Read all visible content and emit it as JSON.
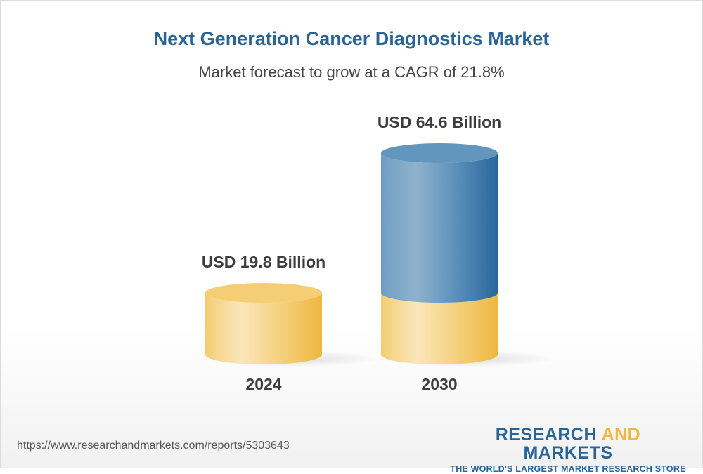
{
  "title": "Next Generation Cancer Diagnostics Market",
  "subtitle": "Market forecast to grow at a CAGR of 21.8%",
  "chart_data": {
    "type": "bar",
    "style": "3d-cylinder",
    "categories": [
      "2024",
      "2030"
    ],
    "values": [
      19.8,
      64.6
    ],
    "value_labels": [
      "USD 19.8 Billion",
      "USD 64.6 Billion"
    ],
    "unit": "USD Billion",
    "cagr": "21.8%",
    "colors": {
      "base": "#f3c65e",
      "growth": "#3e7aab"
    },
    "grid": false
  },
  "footer": {
    "url": "https://www.researchandmarkets.com/reports/5303643",
    "logo_part1": "RESEARCH ",
    "logo_part2": "AND",
    "logo_part3": " MARKETS",
    "logo_tagline": "THE WORLD'S LARGEST MARKET RESEARCH STORE"
  }
}
